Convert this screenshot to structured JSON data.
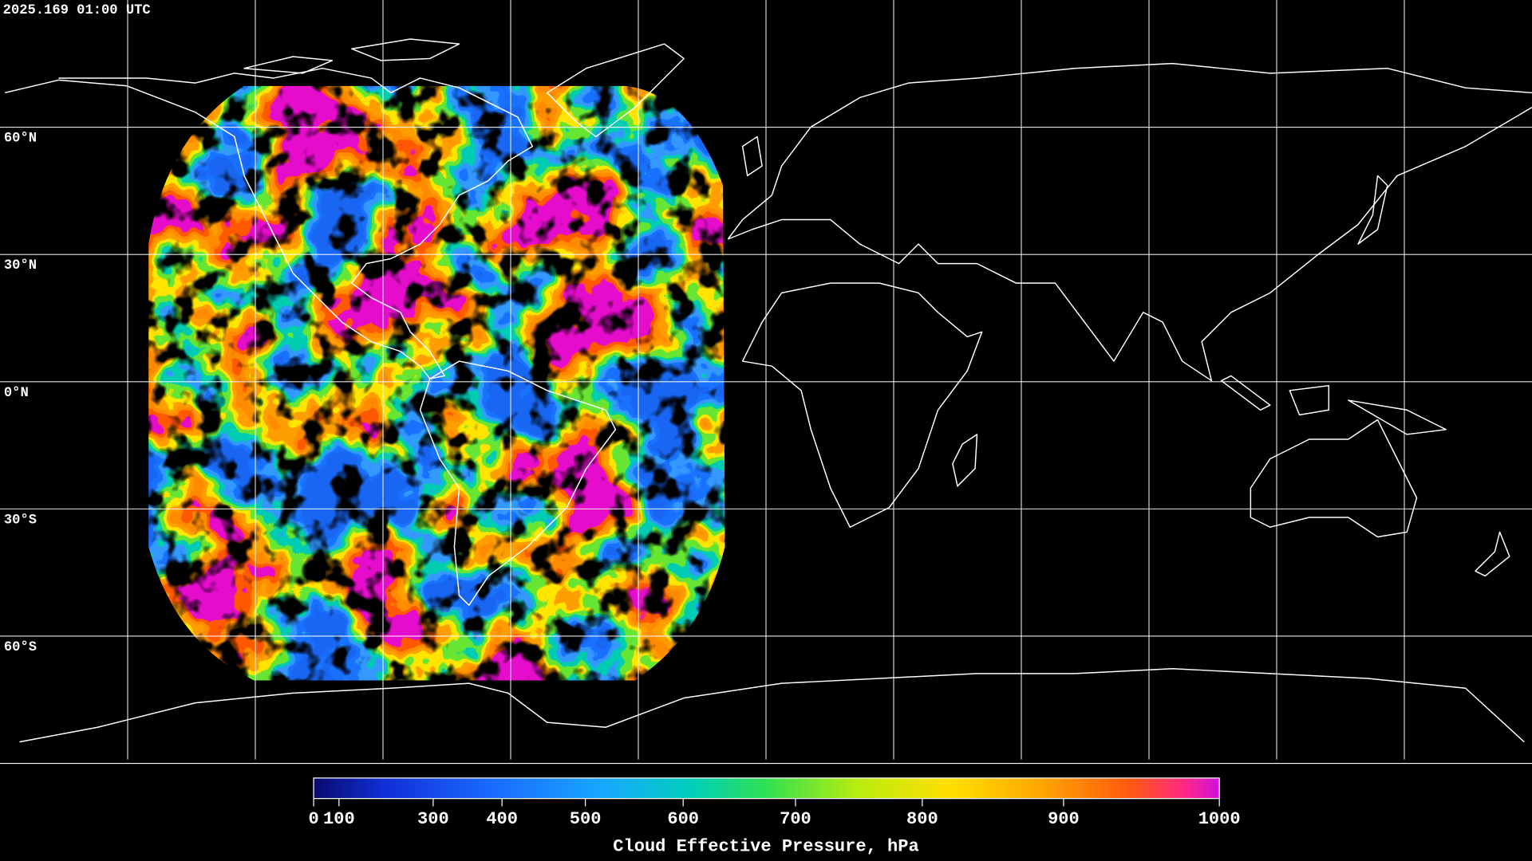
{
  "title": "2025.169 01:00 UTC",
  "map": {
    "lat_lines": [
      {
        "value": 60,
        "label": "60°N"
      },
      {
        "value": 30,
        "label": "30°N"
      },
      {
        "value": 0,
        "label": "0°N"
      },
      {
        "value": -30,
        "label": "30°S"
      },
      {
        "value": -60,
        "label": "60°S"
      }
    ],
    "lon_lines": [
      -150,
      -120,
      -90,
      -60,
      -30,
      0,
      30,
      60,
      90,
      120,
      150
    ]
  },
  "colorbar": {
    "label": "Cloud Effective Pressure, hPa",
    "range": [
      0,
      1000
    ],
    "ticks": [
      0,
      100,
      300,
      400,
      500,
      600,
      700,
      800,
      900,
      1000
    ]
  }
}
